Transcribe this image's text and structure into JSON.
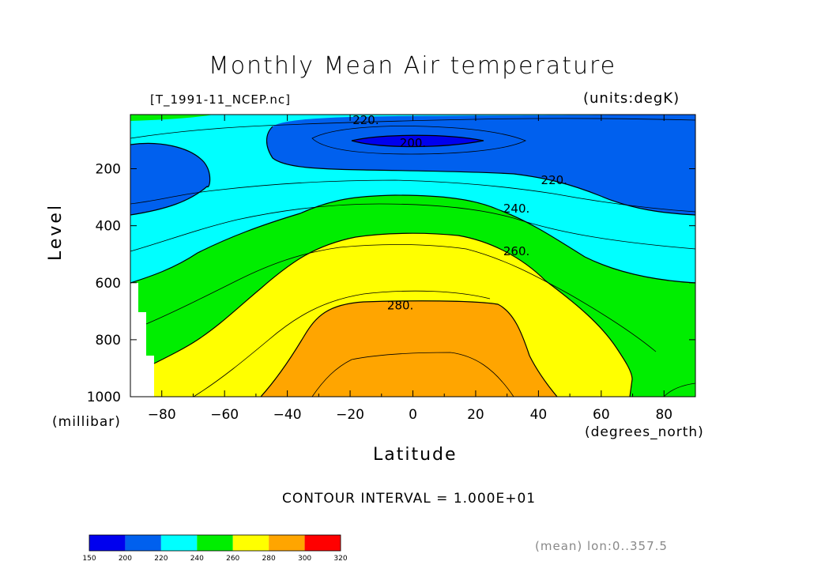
{
  "chart_data": {
    "type": "contour",
    "title": "Monthly Mean Air temperature",
    "dataset": "[T_1991-11_NCEP.nc]",
    "units": "(units:degK)",
    "xlabel": "Latitude",
    "x_units": "(degrees_north)",
    "ylabel": "Level",
    "y_units": "(millibar)",
    "xlim": [
      -90,
      90
    ],
    "ylim": [
      1000,
      10
    ],
    "x_ticks": [
      -80,
      -60,
      -40,
      -20,
      0,
      20,
      40,
      60,
      80
    ],
    "y_ticks": [
      200,
      400,
      600,
      800,
      1000
    ],
    "contour_interval": "CONTOUR INTERVAL = 1.000E+01",
    "mean_note": "(mean) lon:0..357.5",
    "contour_labels": [
      {
        "text": "220.",
        "lat": -15,
        "level": 30
      },
      {
        "text": "200.",
        "lat": 0,
        "level": 110
      },
      {
        "text": "220.",
        "lat": 45,
        "level": 240
      },
      {
        "text": "240.",
        "lat": 33,
        "level": 340
      },
      {
        "text": "260.",
        "lat": 33,
        "level": 490
      },
      {
        "text": "280.",
        "lat": -4,
        "level": 680
      }
    ],
    "colorbar": {
      "ticks": [
        "150",
        "200",
        "220",
        "240",
        "260",
        "280",
        "300",
        "320"
      ],
      "colors": [
        "#0000ee",
        "#0060ee",
        "#00ffff",
        "#00ee00",
        "#ffff00",
        "#ffa500",
        "#ff0000"
      ]
    },
    "bands": [
      {
        "min": 200,
        "max": 220,
        "color": "#0060ee"
      },
      {
        "min": 220,
        "max": 240,
        "color": "#00ffff"
      },
      {
        "min": 240,
        "max": 260,
        "color": "#00ee00"
      },
      {
        "min": 260,
        "max": 280,
        "color": "#ffff00"
      },
      {
        "min": 280,
        "max": 300,
        "color": "#ffa500"
      },
      {
        "min": 150,
        "max": 200,
        "color": "#0000ee"
      }
    ]
  }
}
